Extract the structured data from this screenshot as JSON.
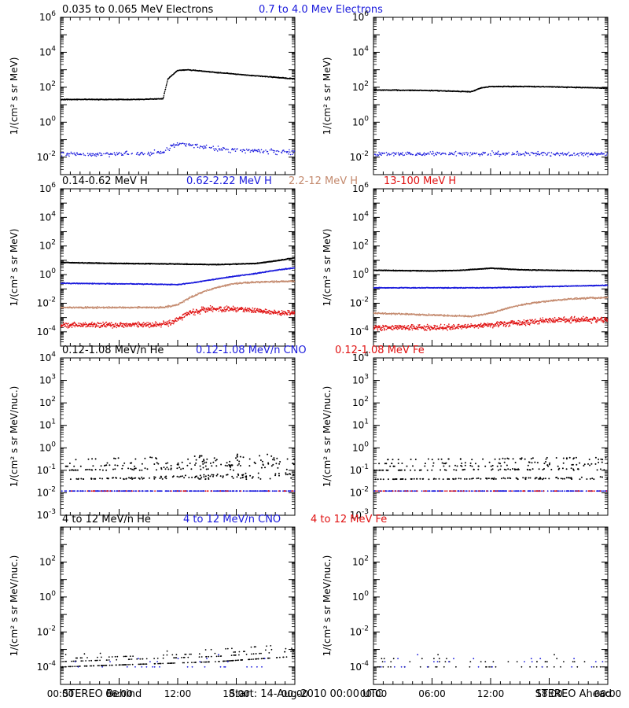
{
  "colors": {
    "black": "#000000",
    "blue": "#1a1adc",
    "brown": "#c48a6e",
    "red": "#e01010",
    "frame": "#000000"
  },
  "rows": [
    {
      "id": "electrons",
      "ylabel": "1/(cm² s sr MeV)",
      "log_range": [
        -3,
        6
      ],
      "ticks": [
        -2,
        0,
        2,
        4,
        6
      ],
      "legend": [
        {
          "text": "0.035 to 0.065 MeV Electrons",
          "color": "black"
        },
        {
          "text": "0.7 to 4.0 Mev Electrons",
          "color": "blue"
        }
      ]
    },
    {
      "id": "protons",
      "ylabel": "1/(cm² s sr MeV)",
      "log_range": [
        -5,
        6
      ],
      "ticks": [
        -4,
        -2,
        0,
        2,
        4,
        6
      ],
      "legend": [
        {
          "text": "0.14-0.62 MeV H",
          "color": "black"
        },
        {
          "text": "0.62-2.22 MeV H",
          "color": "blue"
        },
        {
          "text": "2.2-12 MeV H",
          "color": "brown"
        },
        {
          "text": "13-100 MeV H",
          "color": "red"
        }
      ]
    },
    {
      "id": "heavy_low",
      "ylabel": "1/(cm² s sr MeV/nuc.)",
      "log_range": [
        -3,
        4
      ],
      "ticks": [
        -3,
        -2,
        -1,
        0,
        1,
        2,
        3,
        4
      ],
      "legend": [
        {
          "text": "0.12-1.08 MeV/n He",
          "color": "black"
        },
        {
          "text": "0.12-1.08 MeV/n CNO",
          "color": "blue"
        },
        {
          "text": "0.12-1.08 MeV Fe",
          "color": "red"
        }
      ]
    },
    {
      "id": "heavy_high",
      "ylabel": "1/(cm² s sr MeV/nuc.)",
      "log_range": [
        -5,
        4
      ],
      "ticks": [
        -4,
        -2,
        0,
        2
      ],
      "legend": [
        {
          "text": "4 to 12 MeV/n He",
          "color": "black"
        },
        {
          "text": "4 to 12 MeV/n CNO",
          "color": "blue"
        },
        {
          "text": "4 to 12 MeV Fe",
          "color": "red"
        }
      ]
    }
  ],
  "x_tick_labels": [
    "00:00",
    "06:00",
    "12:00",
    "18:00",
    "00:00"
  ],
  "footer": {
    "left": "STEREO Behind",
    "center": "Start: 14-Aug-2010 00:00 UTC",
    "right": "STEREO Ahead"
  },
  "chart_data": [
    {
      "type": "scatter",
      "panel": "STEREO Behind / electrons",
      "y_scale": "log",
      "x_unit": "hours since 14-Aug-2010 00:00",
      "xlim": [
        0,
        24
      ],
      "series": [
        {
          "name": "0.035 to 0.065 MeV Electrons",
          "color": "black",
          "x": [
            0,
            4,
            8,
            10.5,
            11,
            12,
            13,
            16,
            20,
            24
          ],
          "y": [
            20,
            20,
            20,
            22,
            300,
            900,
            1000,
            700,
            450,
            300
          ]
        },
        {
          "name": "0.7 to 4.0 Mev Electrons",
          "color": "blue",
          "x": [
            0,
            8,
            10.5,
            11.5,
            12.5,
            16,
            20,
            24
          ],
          "y": [
            0.015,
            0.015,
            0.02,
            0.05,
            0.06,
            0.03,
            0.022,
            0.02
          ]
        }
      ]
    },
    {
      "type": "scatter",
      "panel": "STEREO Ahead / electrons",
      "y_scale": "log",
      "x_unit": "hours since 14-Aug-2010 00:00",
      "xlim": [
        0,
        24
      ],
      "series": [
        {
          "name": "0.035 to 0.065 MeV Electrons",
          "color": "black",
          "x": [
            0,
            6,
            10,
            11,
            12,
            16,
            20,
            24
          ],
          "y": [
            70,
            65,
            55,
            90,
            110,
            110,
            100,
            90
          ]
        },
        {
          "name": "0.7 to 4.0 Mev Electrons",
          "color": "blue",
          "x": [
            0,
            12,
            24
          ],
          "y": [
            0.015,
            0.016,
            0.015
          ]
        }
      ]
    },
    {
      "type": "scatter",
      "panel": "STEREO Behind / protons",
      "y_scale": "log",
      "x_unit": "hours since 14-Aug-2010 00:00",
      "xlim": [
        0,
        24
      ],
      "series": [
        {
          "name": "0.14-0.62 MeV H",
          "color": "black",
          "x": [
            0,
            6,
            12,
            16,
            20,
            22,
            24
          ],
          "y": [
            7,
            6,
            5.5,
            5,
            6,
            9,
            15
          ]
        },
        {
          "name": "0.62-2.22 MeV H",
          "color": "blue",
          "x": [
            0,
            8,
            12,
            14,
            16,
            18,
            20,
            22,
            24
          ],
          "y": [
            0.25,
            0.22,
            0.2,
            0.3,
            0.5,
            0.8,
            1.2,
            2,
            3
          ]
        },
        {
          "name": "2.2-12 MeV H",
          "color": "brown",
          "x": [
            0,
            8,
            10.5,
            12,
            13.5,
            15,
            16.5,
            18,
            20,
            24
          ],
          "y": [
            0.005,
            0.005,
            0.005,
            0.008,
            0.03,
            0.08,
            0.15,
            0.25,
            0.3,
            0.35
          ]
        },
        {
          "name": "13-100 MeV H",
          "color": "red",
          "x": [
            0,
            6,
            10,
            11.5,
            13,
            15,
            18,
            20,
            22,
            24
          ],
          "y": [
            0.0003,
            0.0003,
            0.0003,
            0.0005,
            0.002,
            0.004,
            0.004,
            0.003,
            0.002,
            0.002
          ]
        }
      ]
    },
    {
      "type": "scatter",
      "panel": "STEREO Ahead / protons",
      "y_scale": "log",
      "x_unit": "hours since 14-Aug-2010 00:00",
      "xlim": [
        0,
        24
      ],
      "series": [
        {
          "name": "0.14-0.62 MeV H",
          "color": "black",
          "x": [
            0,
            6,
            9,
            12,
            15,
            18,
            24
          ],
          "y": [
            2,
            1.8,
            2,
            2.8,
            2.2,
            2,
            1.8
          ]
        },
        {
          "name": "0.62-2.22 MeV H",
          "color": "blue",
          "x": [
            0,
            12,
            24
          ],
          "y": [
            0.12,
            0.12,
            0.18
          ]
        },
        {
          "name": "2.2-12 MeV H",
          "color": "brown",
          "x": [
            0,
            6,
            10,
            12,
            14,
            16,
            20,
            24
          ],
          "y": [
            0.002,
            0.0015,
            0.0012,
            0.002,
            0.005,
            0.01,
            0.02,
            0.025
          ]
        },
        {
          "name": "13-100 MeV H",
          "color": "red",
          "x": [
            0,
            8,
            12,
            16,
            20,
            24
          ],
          "y": [
            0.0002,
            0.0002,
            0.0003,
            0.0005,
            0.0007,
            0.0007
          ]
        }
      ]
    },
    {
      "type": "scatter",
      "panel": "STEREO Behind / 0.12-1.08 MeV/n",
      "y_scale": "log",
      "x_unit": "hours since 14-Aug-2010 00:00",
      "xlim": [
        0,
        24
      ],
      "series": [
        {
          "name": "0.12-1.08 MeV/n He",
          "color": "black",
          "x": [
            0,
            24
          ],
          "y": [
            0.1,
            0.3
          ]
        },
        {
          "name": "0.12-1.08 MeV/n CNO",
          "color": "blue",
          "x": [
            0,
            24
          ],
          "y": [
            0.012,
            0.012
          ]
        },
        {
          "name": "0.12-1.08 MeV Fe",
          "color": "red",
          "x": [
            0,
            24
          ],
          "y": [
            0.012,
            0.012
          ]
        }
      ]
    },
    {
      "type": "scatter",
      "panel": "STEREO Ahead / 0.12-1.08 MeV/n",
      "y_scale": "log",
      "x_unit": "hours since 14-Aug-2010 00:00",
      "xlim": [
        0,
        24
      ],
      "series": [
        {
          "name": "0.12-1.08 MeV/n He",
          "color": "black",
          "x": [
            0,
            24
          ],
          "y": [
            0.1,
            0.15
          ]
        },
        {
          "name": "0.12-1.08 MeV/n CNO",
          "color": "blue",
          "x": [
            0,
            24
          ],
          "y": [
            0.012,
            0.012
          ]
        },
        {
          "name": "0.12-1.08 MeV Fe",
          "color": "red",
          "x": [
            0,
            24
          ],
          "y": [
            0.012,
            0.012
          ]
        }
      ]
    },
    {
      "type": "scatter",
      "panel": "STEREO Behind / 4 to 12 MeV/n",
      "y_scale": "log",
      "x_unit": "hours since 14-Aug-2010 00:00",
      "xlim": [
        0,
        24
      ],
      "series": [
        {
          "name": "4 to 12 MeV/n He",
          "color": "black",
          "x": [
            0,
            16,
            24
          ],
          "y": [
            0.0001,
            0.0002,
            0.0004
          ]
        },
        {
          "name": "4 to 12 MeV/n CNO",
          "color": "blue",
          "x": [
            0,
            24
          ],
          "y": [
            0.0001,
            0.0001
          ]
        }
      ]
    },
    {
      "type": "scatter",
      "panel": "STEREO Ahead / 4 to 12 MeV/n",
      "y_scale": "log",
      "x_unit": "hours since 14-Aug-2010 00:00",
      "xlim": [
        0,
        24
      ],
      "series": [
        {
          "name": "4 to 12 MeV/n He",
          "color": "black",
          "x": [
            0,
            24
          ],
          "y": [
            0.0001,
            0.0001
          ]
        },
        {
          "name": "4 to 12 MeV/n CNO",
          "color": "blue",
          "x": [
            0,
            24
          ],
          "y": [
            0.0001,
            0.0001
          ]
        }
      ]
    }
  ]
}
